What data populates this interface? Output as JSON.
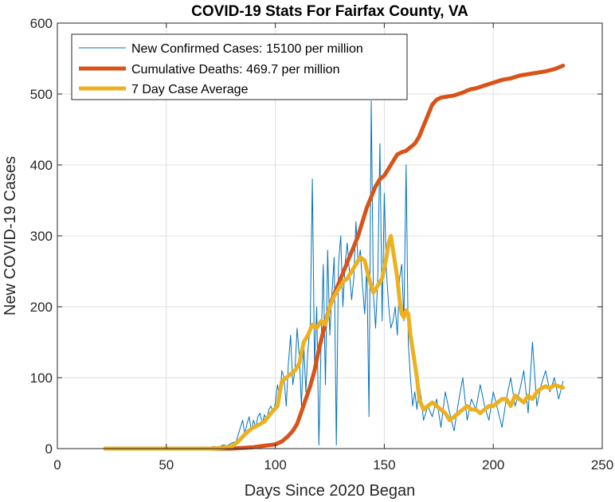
{
  "chart_data": {
    "type": "line",
    "title": "COVID-19 Stats For Fairfax County, VA",
    "xlabel": "Days Since 2020 Began",
    "ylabel": "New COVID-19 Cases",
    "xlim": [
      0,
      250
    ],
    "ylim": [
      0,
      600
    ],
    "xticks": [
      0,
      50,
      100,
      150,
      200,
      250
    ],
    "yticks": [
      0,
      100,
      200,
      300,
      400,
      500,
      600
    ],
    "grid": true,
    "legend_position": "top-left",
    "series": [
      {
        "name": "New Confirmed Cases: 15100 per million",
        "color": "#0072BD",
        "x": [
          22,
          30,
          40,
          50,
          60,
          65,
          70,
          72,
          74,
          76,
          78,
          80,
          82,
          84,
          85,
          86,
          87,
          88,
          89,
          90,
          91,
          92,
          93,
          94,
          95,
          96,
          97,
          98,
          99,
          100,
          101,
          102,
          103,
          104,
          105,
          106,
          107,
          108,
          109,
          110,
          111,
          112,
          113,
          114,
          115,
          116,
          117,
          118,
          119,
          120,
          121,
          122,
          123,
          124,
          125,
          126,
          127,
          128,
          129,
          130,
          131,
          132,
          133,
          134,
          135,
          136,
          137,
          138,
          139,
          140,
          141,
          142,
          143,
          144,
          145,
          146,
          147,
          148,
          149,
          150,
          151,
          152,
          153,
          154,
          155,
          156,
          157,
          158,
          159,
          160,
          161,
          162,
          163,
          164,
          165,
          166,
          167,
          168,
          169,
          170,
          172,
          174,
          176,
          178,
          180,
          182,
          184,
          186,
          188,
          190,
          192,
          194,
          196,
          198,
          200,
          202,
          204,
          206,
          208,
          210,
          212,
          214,
          216,
          218,
          220,
          222,
          224,
          226,
          228,
          230,
          232
        ],
        "y": [
          0,
          0,
          0,
          0,
          0,
          0,
          2,
          3,
          2,
          5,
          4,
          8,
          10,
          30,
          40,
          20,
          35,
          45,
          25,
          40,
          30,
          45,
          50,
          35,
          48,
          40,
          55,
          60,
          50,
          65,
          90,
          70,
          110,
          100,
          60,
          120,
          160,
          90,
          110,
          170,
          130,
          60,
          150,
          80,
          140,
          175,
          380,
          120,
          200,
          5,
          150,
          260,
          90,
          280,
          160,
          220,
          270,
          5,
          260,
          300,
          200,
          260,
          290,
          250,
          210,
          240,
          320,
          260,
          280,
          230,
          190,
          260,
          45,
          490,
          220,
          170,
          240,
          430,
          180,
          360,
          250,
          200,
          170,
          180,
          200,
          160,
          240,
          260,
          180,
          400,
          150,
          100,
          60,
          80,
          55,
          90,
          70,
          40,
          50,
          60,
          45,
          70,
          30,
          80,
          50,
          25,
          65,
          100,
          40,
          70,
          55,
          90,
          60,
          40,
          80,
          55,
          30,
          70,
          100,
          60,
          80,
          110,
          50,
          150,
          60,
          90,
          110,
          80,
          100,
          70,
          95
        ]
      },
      {
        "name": "Cumulative Deaths: 469.7 per million",
        "color": "#D95319",
        "x": [
          22,
          50,
          80,
          90,
          95,
          100,
          103,
          106,
          108,
          110,
          112,
          114,
          116,
          118,
          120,
          122,
          124,
          126,
          128,
          130,
          132,
          134,
          136,
          138,
          140,
          142,
          144,
          146,
          148,
          150,
          152,
          154,
          156,
          158,
          160,
          162,
          164,
          166,
          168,
          170,
          172,
          174,
          176,
          178,
          180,
          182,
          184,
          186,
          188,
          190,
          192,
          194,
          196,
          198,
          200,
          204,
          208,
          212,
          216,
          220,
          224,
          228,
          232
        ],
        "y": [
          0,
          0,
          0,
          2,
          4,
          6,
          10,
          18,
          25,
          35,
          52,
          70,
          88,
          110,
          140,
          165,
          190,
          210,
          225,
          240,
          255,
          270,
          285,
          300,
          320,
          340,
          355,
          370,
          380,
          385,
          395,
          405,
          415,
          418,
          420,
          425,
          430,
          440,
          455,
          470,
          485,
          492,
          495,
          496,
          497,
          498,
          500,
          502,
          505,
          507,
          508,
          510,
          512,
          514,
          516,
          520,
          522,
          526,
          528,
          530,
          532,
          535,
          540
        ]
      },
      {
        "name": "7 Day Case Average",
        "color": "#EDB120",
        "x": [
          22,
          50,
          70,
          75,
          80,
          83,
          86,
          89,
          92,
          95,
          98,
          101,
          103,
          105,
          107,
          109,
          111,
          113,
          115,
          117,
          119,
          121,
          123,
          125,
          127,
          129,
          131,
          133,
          135,
          137,
          139,
          141,
          143,
          145,
          147,
          149,
          151,
          152,
          153,
          154,
          155,
          156,
          157,
          158,
          159,
          160,
          161,
          162,
          163,
          164,
          165,
          166,
          168,
          170,
          172,
          174,
          176,
          178,
          180,
          182,
          184,
          186,
          188,
          190,
          192,
          194,
          196,
          198,
          200,
          202,
          204,
          206,
          208,
          210,
          212,
          214,
          216,
          218,
          220,
          222,
          224,
          226,
          228,
          230,
          232
        ],
        "y": [
          0,
          0,
          0,
          1,
          3,
          10,
          20,
          28,
          33,
          38,
          50,
          60,
          95,
          100,
          105,
          110,
          120,
          150,
          160,
          175,
          170,
          180,
          175,
          200,
          215,
          225,
          235,
          240,
          250,
          260,
          270,
          265,
          240,
          220,
          230,
          240,
          270,
          290,
          300,
          280,
          260,
          240,
          210,
          190,
          185,
          195,
          190,
          160,
          140,
          120,
          100,
          70,
          55,
          60,
          65,
          60,
          55,
          50,
          40,
          45,
          50,
          55,
          60,
          55,
          55,
          50,
          55,
          60,
          60,
          65,
          70,
          70,
          60,
          75,
          70,
          65,
          75,
          70,
          80,
          85,
          88,
          85,
          90,
          88,
          86
        ]
      }
    ]
  }
}
